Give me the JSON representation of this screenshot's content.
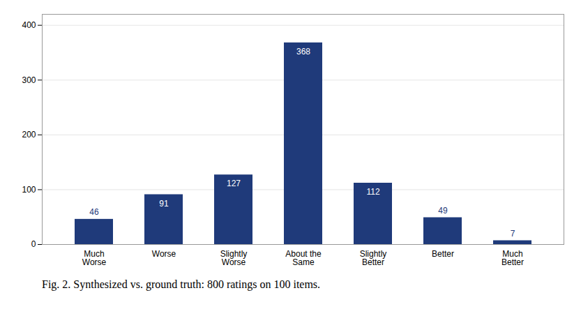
{
  "chart_data": {
    "type": "bar",
    "categories": [
      "Much\nWorse",
      "Worse",
      "Slightly\nWorse",
      "About the\nSame",
      "Slightly\nBetter",
      "Better",
      "Much\nBetter"
    ],
    "values": [
      46,
      91,
      127,
      368,
      112,
      49,
      7
    ],
    "color": "#1F3A7A",
    "ylim": [
      0,
      420
    ],
    "yticks": [
      0,
      100,
      200,
      300,
      400
    ],
    "grid": true,
    "data_labels": true,
    "caption": "Fig. 2. Synthesized vs. ground truth: 800 ratings on 100 items."
  }
}
